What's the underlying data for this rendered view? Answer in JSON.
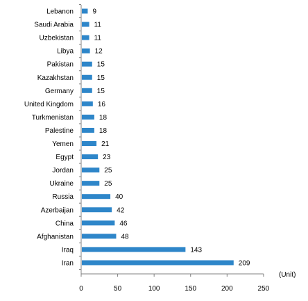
{
  "chart_data": {
    "type": "bar",
    "orientation": "horizontal",
    "categories": [
      "Lebanon",
      "Saudi Arabia",
      "Uzbekistan",
      "Libya",
      "Pakistan",
      "Kazakhstan",
      "Germany",
      "United Kingdom",
      "Turkmenistan",
      "Palestine",
      "Yemen",
      "Egypt",
      "Jordan",
      "Ukraine",
      "Russia",
      "Azerbaijan",
      "China",
      "Afghanistan",
      "Iraq",
      "Iran"
    ],
    "values": [
      9,
      11,
      11,
      12,
      15,
      15,
      15,
      16,
      18,
      18,
      21,
      23,
      25,
      25,
      40,
      42,
      46,
      48,
      143,
      209
    ],
    "value_labels": [
      "9",
      "11",
      "11",
      "12",
      "15",
      "15",
      "15",
      "16",
      "18",
      "18",
      "21",
      "23",
      "25",
      "25",
      "40",
      "42",
      "46",
      "48",
      "143",
      "209"
    ],
    "xlim": [
      0,
      250
    ],
    "x_ticks": [
      "0",
      "50",
      "100",
      "150",
      "200",
      "250"
    ],
    "unit_label": "(Unit)",
    "bar_color": "#2e86c9",
    "grid": false
  }
}
